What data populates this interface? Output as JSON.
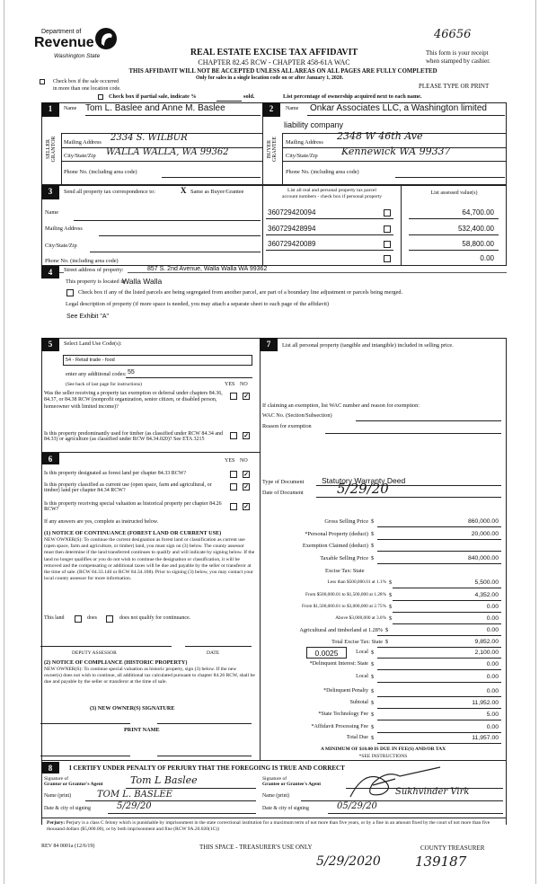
{
  "header": {
    "logo_line1": "Department of",
    "logo_line2": "Revenue",
    "logo_line3": "Washington State",
    "title": "REAL ESTATE EXCISE TAX AFFIDAVIT",
    "subtitle": "CHAPTER 82.45 RCW - CHAPTER 458-61A WAC",
    "receipt_line1": "This form is your receipt",
    "receipt_line2": "when stamped by cashier.",
    "handwritten_number": "46656",
    "warning": "THIS AFFIDAVIT WILL NOT BE ACCEPTED UNLESS ALL AREAS ON ALL PAGES ARE FULLY COMPLETED",
    "only_for": "Only for sales in a single location code on or after January 1, 2020.",
    "multi_location_1": "Check box if the sale occurred",
    "multi_location_2": "in more than one location code.",
    "please_type": "PLEASE TYPE OR PRINT",
    "partial_sale": "Check box if partial sale, indicate %",
    "sold": "sold.",
    "list_pct": "List percentage of ownership acquired next to each name."
  },
  "seller": {
    "num": "1",
    "side_label": "SELLER GRANTOR",
    "name_label": "Name",
    "name": "Tom L. Baslee and Anne M. Baslee",
    "mail_label": "Mailing Address",
    "mail": "2334 S. WILBUR",
    "city_label": "City/State/Zip",
    "city": "WALLA WALLA, WA 99362",
    "phone_label": "Phone No. (including area code)"
  },
  "buyer": {
    "num": "2",
    "side_label": "BUYER GRANTEE",
    "name_label": "Name",
    "name1": "Onkar Associates LLC, a Washington limited",
    "name2": "liability company",
    "mail_label": "Mailing Address",
    "mail": "2348 W 46th Ave",
    "city_label": "City/State/Zip",
    "city": "Kennewick  WA 99337",
    "phone_label": "Phone No. (including area code)"
  },
  "section3": {
    "num": "3",
    "send_label": "Send all property tax correspondence to:",
    "same_label": "Same as Buyer/Grantee",
    "same_mark": "X",
    "name_label": "Name",
    "mail_label": "Mailing Address",
    "city_label": "City/State/Zip",
    "phone_label": "Phone No. (including area code)",
    "parcel_header1": "List all real and personal property tax parcel",
    "parcel_header2": "account numbers - check box if personal property",
    "value_header": "List assessed value(s)",
    "parcels": [
      {
        "number": "360729420094",
        "value": "64,700.00"
      },
      {
        "number": "360729428994",
        "value": "532,400.00"
      },
      {
        "number": "360729420089",
        "value": "58,800.00"
      },
      {
        "number": "",
        "value": "0.00"
      }
    ]
  },
  "section4": {
    "num": "4",
    "street_label": "Street address of property:",
    "street": "857 S. 2nd Avenue, Walla Walla WA   99362",
    "located_label": "This property is located in",
    "located": "Walla Walla",
    "segregated": "Check box if any of the listed parcels are being segregated from another parcel, are part of a boundary line adjustment or parcels being merged.",
    "legal_label": "Legal description of property (if more space is needed, you may attach a separate sheet to each page of the affidavit)",
    "legal": "See Exhibit \"A\""
  },
  "section5": {
    "num": "5",
    "label": "Select Land Use Code(s):",
    "code": "54 - Retail trade - food",
    "additional_label": "enter any additional codes:",
    "additional": "55",
    "see_back": "(See back of last page for instructions)",
    "yes": "YES",
    "no": "NO",
    "q1": "Was the seller receiving a property tax exemption or deferral under chapters 84.36, 84.37, or 84.38 RCW (nonprofit organization, senior citizen, or disabled person, homeowner with limited income)?",
    "q1_answer": "no",
    "q2": "Is this property predominantly used for timber (as classified under RCW 84.34 and 84.33) or agriculture (as classified under RCW 84.34.020)? See ETA 3215",
    "q2_answer": "no"
  },
  "section6": {
    "num": "6",
    "yes": "YES",
    "no": "NO",
    "questions": [
      {
        "text": "Is this property designated as forest land per chapter 84.33 RCW?",
        "answer": "no"
      },
      {
        "text": "Is this property classified as current use (open space, farm and agricultural, or timber) land per chapter 84.34 RCW?",
        "answer": "no"
      },
      {
        "text": "Is this property receiving special valuation as historical property per chapter 84.26 RCW?",
        "answer": "no"
      }
    ],
    "if_any": "If any answers are yes, complete as instructed below.",
    "notice1_title": "(1) NOTICE OF CONTINUANCE (FOREST LAND OR CURRENT USE)",
    "notice1_text": "NEW OWNER(S): To continue the current designation as forest land or classification as current use (open space, farm and agriculture, or timber) land, you must sign on (3) below. The county assessor must then determine if the land transferred continues to qualify and will indicate by signing below. If the land no longer qualifies or you do not wish to continue the designation or classification, it will be removed and the compensating or additional taxes will be due and payable by the seller or transferor at the time of sale. (RCW 84.33.140 or RCW 84.34.108). Prior to signing (3) below, you may contact your local county assessor for more information.",
    "this_land": "This land",
    "does": "does",
    "does_not": "does not qualify for continuance.",
    "deputy": "DEPUTY ASSESSOR",
    "date": "DATE",
    "notice2_title": "(2) NOTICE OF COMPLIANCE (HISTORIC PROPERTY)",
    "notice2_text": "NEW OWNER(S): To continue special valuation as historic property, sign (3) below. If the new owner(s) does not wish to continue, all additional tax calculated pursuant to chapter 84.26 RCW, shall be due and payable by the seller or transferor at the time of sale.",
    "new_owner_sig": "(3) NEW OWNER(S) SIGNATURE",
    "print_name": "PRINT NAME"
  },
  "section7": {
    "num": "7",
    "label": "List all personal property (tangible and intangible) included in selling price.",
    "exemption_label": "If claiming an exemption, list WAC number and reason for exemption:",
    "wac_label": "WAC No. (Section/Subsection)",
    "reason_label": "Reason for exemption",
    "doc_type_label": "Type of Document",
    "doc_type": "Statutory Warranty Deed",
    "doc_date_label": "Date of Document",
    "doc_date": "5/29/20"
  },
  "tax": {
    "rows": [
      {
        "label": "Gross Selling Price",
        "value": "860,000.00"
      },
      {
        "label": "*Personal Property (deduct)",
        "value": "20,000.00"
      },
      {
        "label": "Exemption Claimed (deduct)",
        "value": ""
      },
      {
        "label": "Taxable Selling Price",
        "value": "840,000.00"
      }
    ],
    "excise_label": "Excise Tax: State",
    "brackets": [
      {
        "label": "Less than $500,000.01 at 1.1%",
        "value": "5,500.00"
      },
      {
        "label": "From $500,000.01 to $1,500,000 at 1.28%",
        "value": "4,352.00"
      },
      {
        "label": "From $1,500,000.01 to $3,000,000 at 2.75%",
        "value": "0.00"
      },
      {
        "label": "Above $3,000,000 at 3.0%",
        "value": "0.00"
      },
      {
        "label": "Agricultural and timberland at 1.28%",
        "value": "0.00"
      },
      {
        "label": "Total Excise Tax: State",
        "value": "9,852.00"
      }
    ],
    "local_rate": "0.0025",
    "rows2": [
      {
        "label": "Local",
        "value": "2,100.00"
      },
      {
        "label": "*Delinquent Interest: State",
        "value": "0.00"
      },
      {
        "label": "Local",
        "value": "0.00"
      },
      {
        "label": "*Delinquent Penalty",
        "value": "0.00"
      },
      {
        "label": "Subtotal",
        "value": "11,952.00"
      },
      {
        "label": "*State Technology Fee",
        "value": "5.00"
      },
      {
        "label": "*Affidavit Processing Fee",
        "value": "0.00"
      },
      {
        "label": "Total Due",
        "value": "11,957.00"
      }
    ],
    "currency": "$",
    "minimum": "A MINIMUM OF $10.00 IS DUE IN FEE(S) AND/OR TAX",
    "see_instructions": "*SEE INSTRUCTIONS"
  },
  "section8": {
    "num": "8",
    "certify": "I CERTIFY UNDER PENALTY OF PERJURY THAT THE FOREGOING IS TRUE AND CORRECT",
    "grantor_sig_label1": "Signature of",
    "grantor_sig_label2": "Grantor or Grantor's Agent",
    "grantor_sig": "Tom L Baslee",
    "grantee_sig_label1": "Signature of",
    "grantee_sig_label2": "Grantee or Grantee's Agent",
    "grantee_sig": "Virk",
    "name_label": "Name (print)",
    "grantor_name": "TOM L. BASLEE",
    "grantee_name": "Sukhvinder Virk",
    "date_label": "Date & city of signing",
    "grantor_date": "5/29/20",
    "grantee_date": "05/29/20",
    "perjury_label": "Perjury:",
    "perjury": "Perjury is a class C felony which is punishable by imprisonment in the state correctional institution for a maximum term of not more than five years, or by a fine in an amount fixed by the court of not more than five thousand dollars ($5,000.00), or by both imprisonment and fine (RCW 9A.20.020(1C))"
  },
  "footer": {
    "rev": "REV 84 0001a (12/6/19)",
    "treasurer_use": "THIS SPACE - TREASURER'S USE ONLY",
    "county_treasurer": "COUNTY TREASURER",
    "stamp_date": "5/29/2020",
    "stamp_number": "139187"
  }
}
